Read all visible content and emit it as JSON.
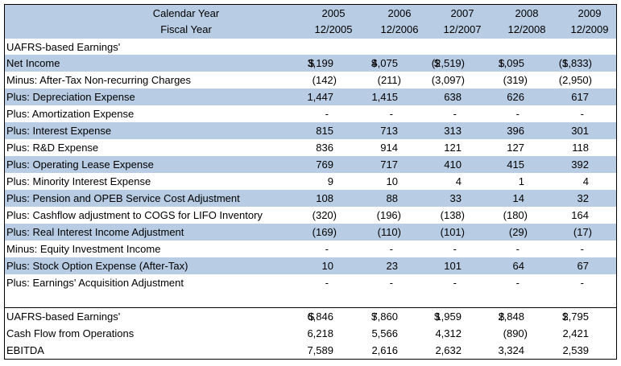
{
  "header": {
    "line1_label": "Calendar Year",
    "line2_label": "Fiscal Year",
    "years": [
      "2005",
      "2006",
      "2007",
      "2008",
      "2009"
    ],
    "fiscal": [
      "12/2005",
      "12/2006",
      "12/2007",
      "12/2008",
      "12/2009"
    ]
  },
  "section_title": "UAFRS-based Earnings'",
  "rows": [
    {
      "label": "Net Income",
      "dollar": true,
      "values": [
        "3,199",
        "4,075",
        "(2,519)",
        "1,095",
        "(1,833)"
      ],
      "shade": true
    },
    {
      "label": "Minus: After-Tax Non-recurring Charges",
      "dollar": false,
      "values": [
        "(142)",
        "(211)",
        "(3,097)",
        "(319)",
        "(2,950)"
      ],
      "shade": false
    },
    {
      "label": "Plus: Depreciation Expense",
      "dollar": false,
      "values": [
        "1,447",
        "1,415",
        "638",
        "626",
        "617"
      ],
      "shade": true
    },
    {
      "label": "Plus: Amortization Expense",
      "dollar": false,
      "values": [
        "-",
        "-",
        "-",
        "-",
        "-"
      ],
      "shade": false
    },
    {
      "label": "Plus: Interest Expense",
      "dollar": false,
      "values": [
        "815",
        "713",
        "313",
        "396",
        "301"
      ],
      "shade": true
    },
    {
      "label": "Plus: R&D Expense",
      "dollar": false,
      "values": [
        "836",
        "914",
        "121",
        "127",
        "118"
      ],
      "shade": false
    },
    {
      "label": "Plus: Operating Lease Expense",
      "dollar": false,
      "values": [
        "769",
        "717",
        "410",
        "415",
        "392"
      ],
      "shade": true
    },
    {
      "label": "Plus: Minority Interest Expense",
      "dollar": false,
      "values": [
        "9",
        "10",
        "4",
        "1",
        "4"
      ],
      "shade": false
    },
    {
      "label": "Plus: Pension and OPEB Service Cost Adjustment",
      "dollar": false,
      "values": [
        "108",
        "88",
        "33",
        "14",
        "32"
      ],
      "shade": true
    },
    {
      "label": "Plus: Cashflow adjustment to COGS for LIFO Inventory",
      "dollar": false,
      "values": [
        "(320)",
        "(196)",
        "(138)",
        "(180)",
        "164"
      ],
      "shade": false
    },
    {
      "label": "Plus: Real Interest Income Adjustment",
      "dollar": false,
      "values": [
        "(169)",
        "(110)",
        "(101)",
        "(29)",
        "(17)"
      ],
      "shade": true
    },
    {
      "label": "Minus: Equity Investment Income",
      "dollar": false,
      "values": [
        "-",
        "-",
        "-",
        "-",
        "-"
      ],
      "shade": false
    },
    {
      "label": "Plus: Stock Option Expense (After-Tax)",
      "dollar": false,
      "values": [
        "10",
        "23",
        "101",
        "64",
        "67"
      ],
      "shade": true
    },
    {
      "label": "Plus: Earnings' Acquisition Adjustment",
      "dollar": false,
      "values": [
        "-",
        "-",
        "-",
        "-",
        "-"
      ],
      "shade": false
    }
  ],
  "summary": [
    {
      "label": "UAFRS-based Earnings'",
      "dollar": true,
      "values": [
        "6,846",
        "7,860",
        "1,959",
        "2,848",
        "2,795"
      ]
    },
    {
      "label": "Cash Flow from Operations",
      "dollar": false,
      "values": [
        "6,218",
        "5,566",
        "4,312",
        "(890)",
        "2,421"
      ]
    },
    {
      "label": "EBITDA",
      "dollar": false,
      "values": [
        "7,589",
        "2,616",
        "2,632",
        "3,324",
        "2,539"
      ]
    }
  ],
  "currency_symbol": "$"
}
